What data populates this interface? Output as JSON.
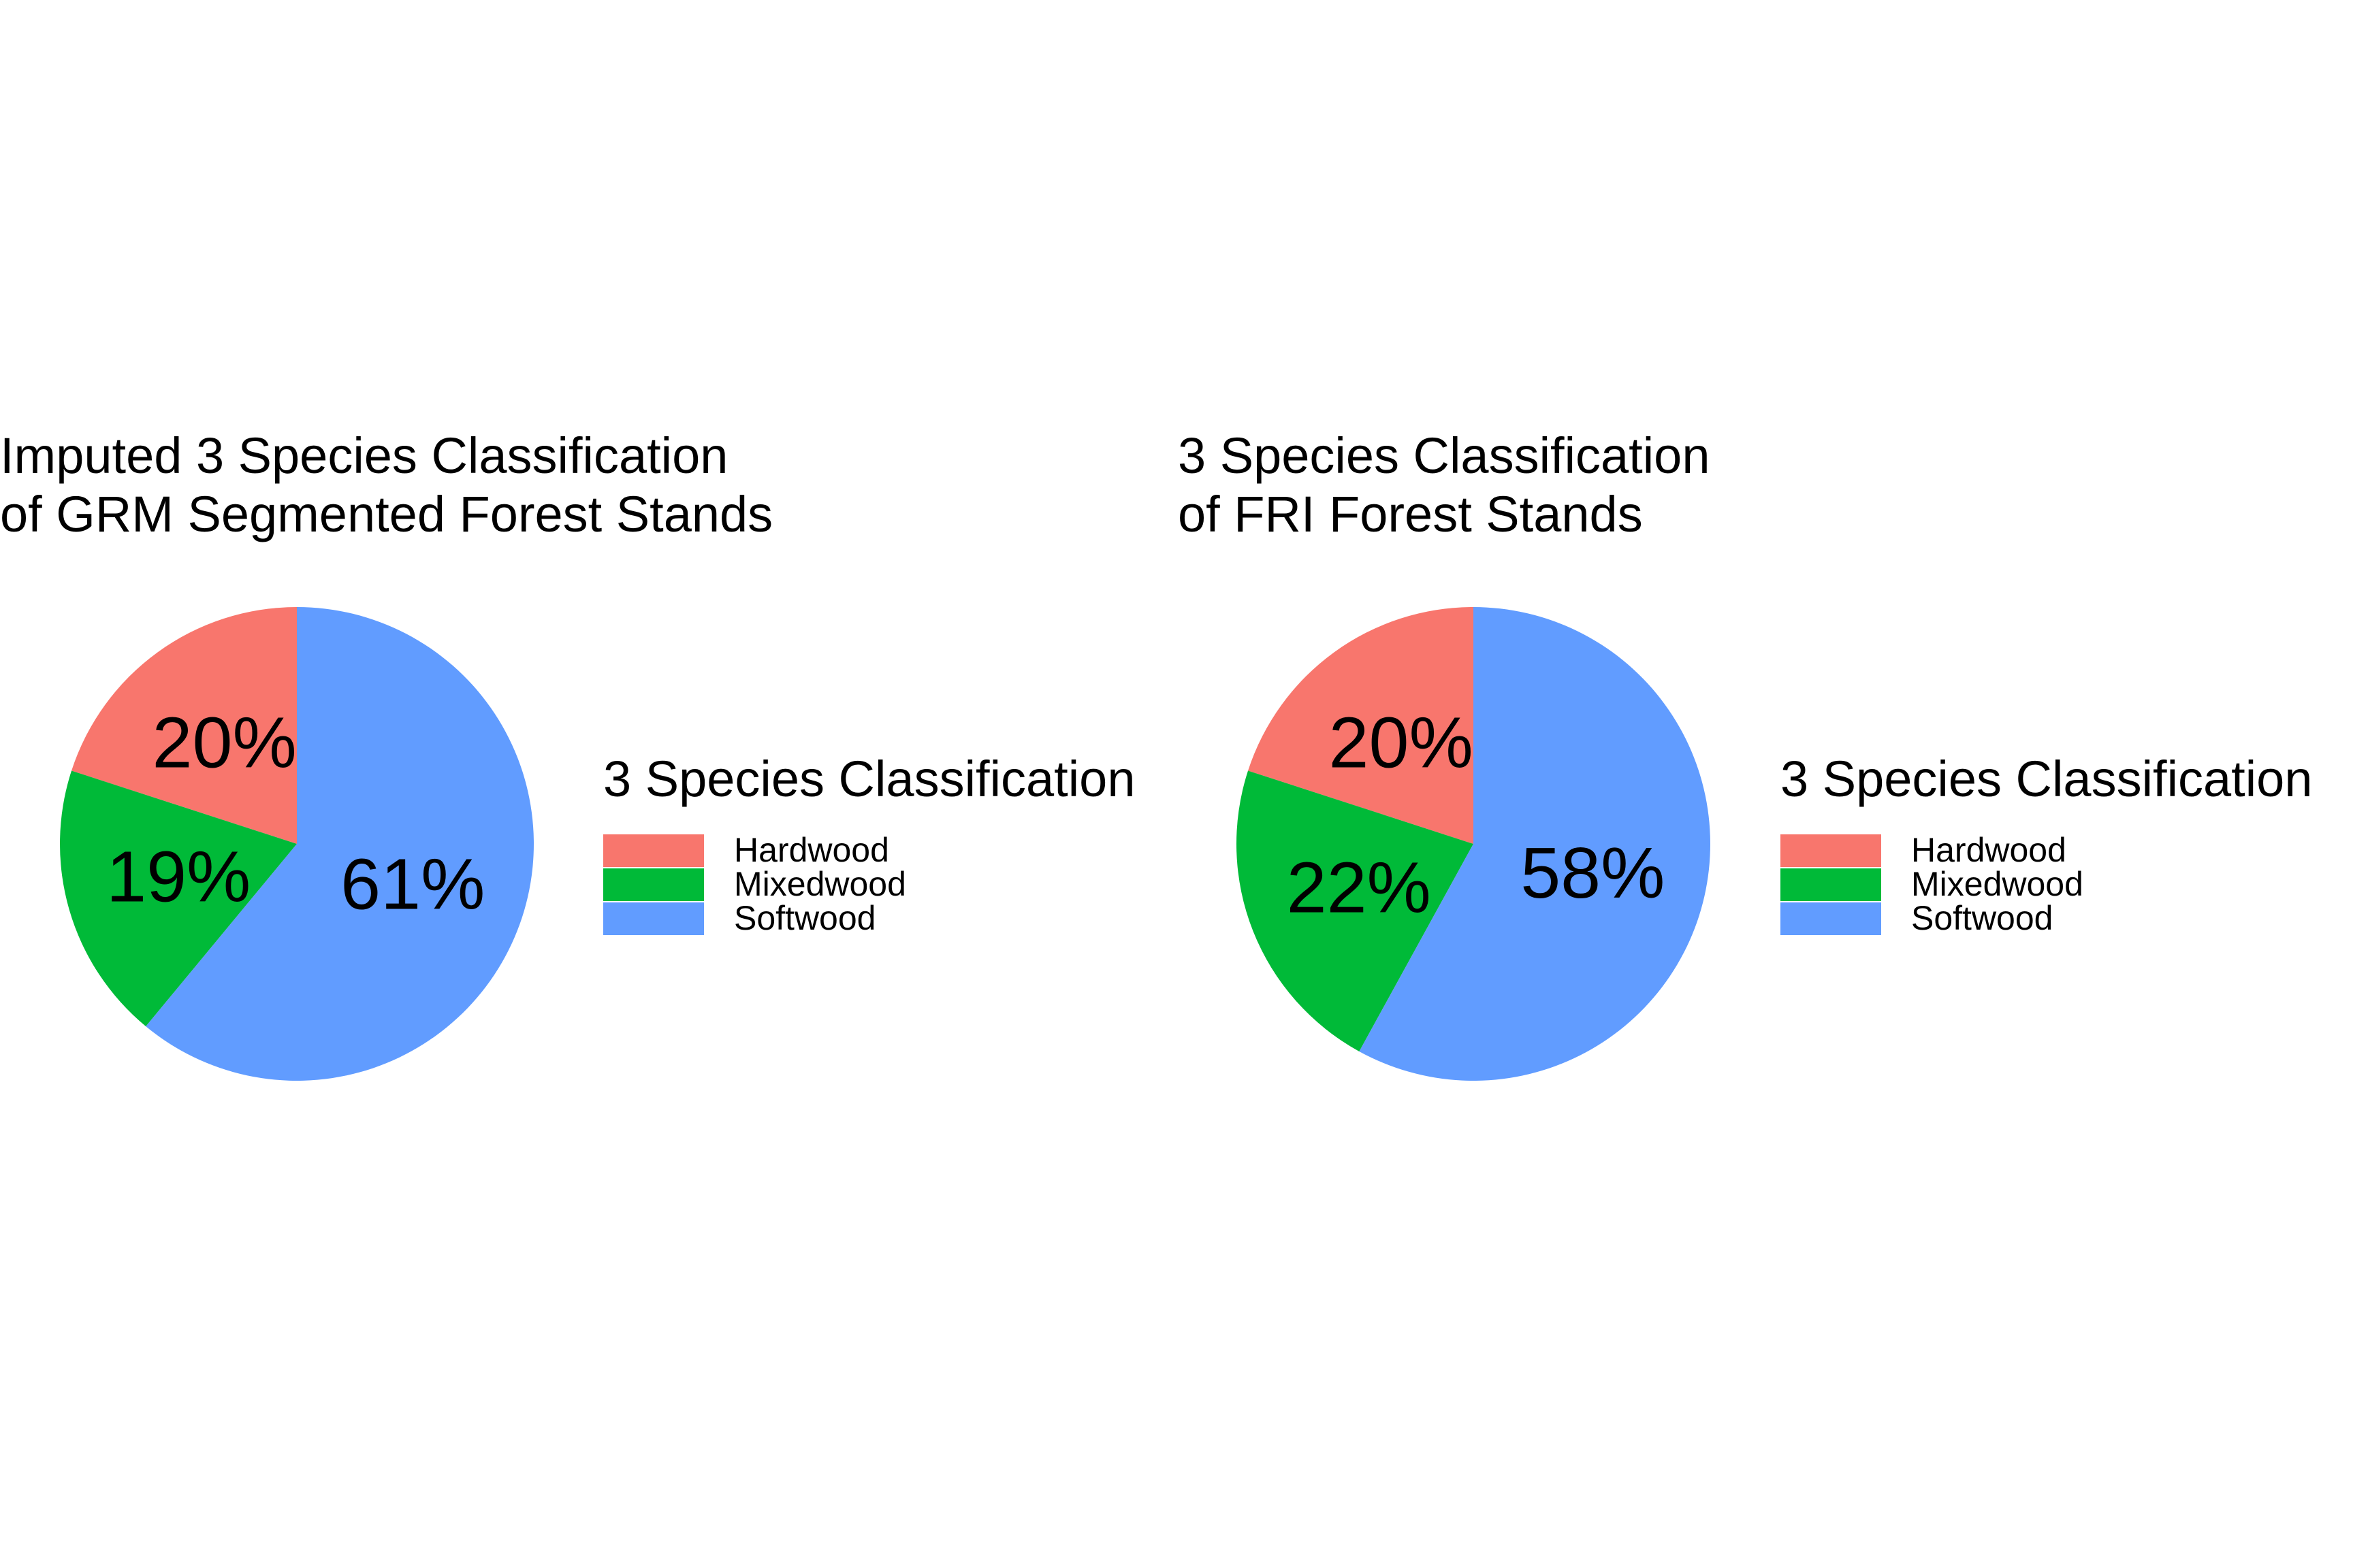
{
  "chart_data": [
    {
      "type": "pie",
      "title": [
        "Imputed 3 Species Classification",
        "of GRM Segmented Forest Stands"
      ],
      "legend_title": "3 Species Classification",
      "legend_position": "right",
      "categories": [
        "Hardwood",
        "Mixedwood",
        "Softwood"
      ],
      "values": [
        20,
        19,
        61
      ],
      "labels": [
        "20%",
        "19%",
        "61%"
      ],
      "colors": [
        "#F8766D",
        "#00BA38",
        "#619CFF"
      ]
    },
    {
      "type": "pie",
      "title": [
        "3 Species Classification",
        "of FRI Forest Stands"
      ],
      "legend_title": "3 Species Classification",
      "legend_position": "right",
      "categories": [
        "Hardwood",
        "Mixedwood",
        "Softwood"
      ],
      "values": [
        20,
        22,
        58
      ],
      "labels": [
        "20%",
        "22%",
        "58%"
      ],
      "colors": [
        "#F8766D",
        "#00BA38",
        "#619CFF"
      ]
    }
  ]
}
